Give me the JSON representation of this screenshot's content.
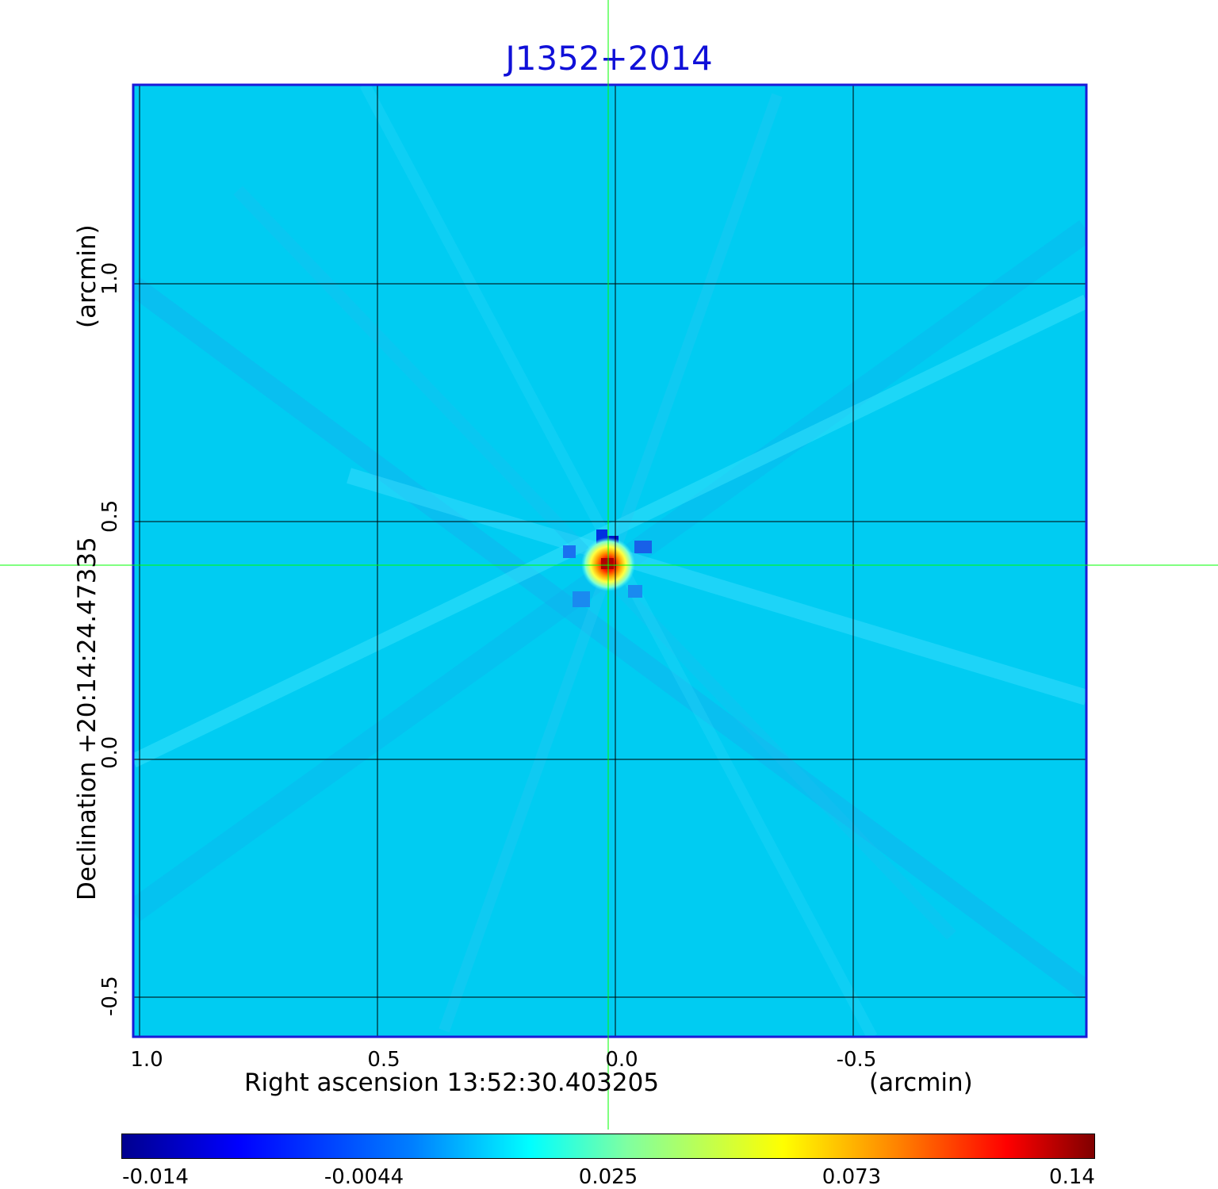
{
  "title": "J1352+2014",
  "x_axis": {
    "label": "Right ascension  13:52:30.403205",
    "unit": "(arcmin)",
    "ticks": [
      "1.0",
      "0.5",
      "0.0",
      "-0.5"
    ]
  },
  "y_axis": {
    "label": "Declination  +20:14:24.47335",
    "unit": "(arcmin)",
    "ticks": [
      "1.0",
      "0.5",
      "0.0",
      "-0.5"
    ]
  },
  "colorbar": {
    "ticks": [
      "-0.014",
      "-0.0044",
      "0.025",
      "0.073",
      "0.14"
    ],
    "colormap": "jet"
  },
  "colors": {
    "title": "#1010d8",
    "frame": "#1a1ad8",
    "background_field": "#00c8f0",
    "crosshair": "#00ff00",
    "grid": "#000000"
  }
}
